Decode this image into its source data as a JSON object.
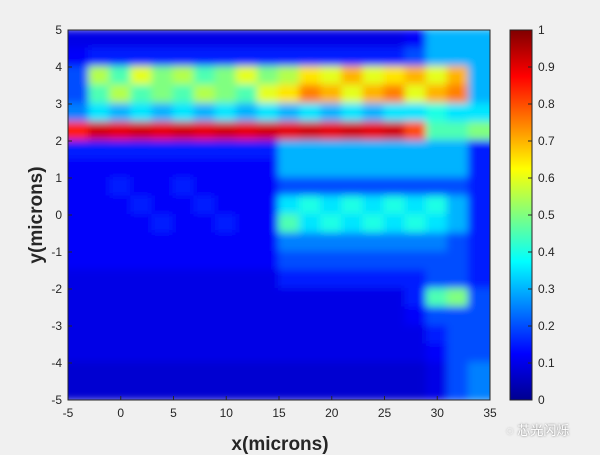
{
  "chart_data": {
    "type": "heatmap",
    "xlabel": "x(microns)",
    "ylabel": "y(microns)",
    "xlim": [
      -5,
      35
    ],
    "ylim": [
      -5,
      5
    ],
    "xticks": [
      "-5",
      "0",
      "5",
      "10",
      "15",
      "20",
      "25",
      "30",
      "35"
    ],
    "yticks": [
      "5",
      "4",
      "3",
      "2",
      "1",
      "0",
      "-1",
      "-2",
      "-3",
      "-4",
      "-5"
    ],
    "colorbar": {
      "colormap": "jet",
      "range": [
        0,
        1
      ],
      "ticks": [
        "1",
        "0.9",
        "0.8",
        "0.7",
        "0.6",
        "0.5",
        "0.4",
        "0.3",
        "0.2",
        "0.1",
        "0"
      ]
    },
    "grid_x_centers": [
      -4,
      -2,
      0,
      2,
      4,
      6,
      8,
      10,
      12,
      14,
      16,
      18,
      20,
      22,
      24,
      26,
      28,
      30,
      32,
      34
    ],
    "grid_y_centers": [
      4.75,
      4.25,
      3.75,
      3.25,
      2.75,
      2.25,
      1.75,
      1.25,
      0.75,
      0.25,
      -0.25,
      -0.75,
      -1.25,
      -1.75,
      -2.25,
      -2.75,
      -3.25,
      -3.75,
      -4.25,
      -4.75
    ],
    "values": [
      [
        0.1,
        0.1,
        0.1,
        0.1,
        0.1,
        0.1,
        0.1,
        0.1,
        0.1,
        0.1,
        0.1,
        0.1,
        0.1,
        0.1,
        0.1,
        0.1,
        0.12,
        0.3,
        0.3,
        0.3
      ],
      [
        0.12,
        0.15,
        0.15,
        0.15,
        0.15,
        0.15,
        0.15,
        0.15,
        0.15,
        0.15,
        0.15,
        0.15,
        0.15,
        0.15,
        0.15,
        0.15,
        0.2,
        0.3,
        0.3,
        0.3
      ],
      [
        0.2,
        0.55,
        0.45,
        0.6,
        0.5,
        0.55,
        0.45,
        0.5,
        0.6,
        0.5,
        0.55,
        0.65,
        0.6,
        0.7,
        0.6,
        0.65,
        0.7,
        0.6,
        0.7,
        0.3
      ],
      [
        0.2,
        0.45,
        0.55,
        0.45,
        0.5,
        0.45,
        0.55,
        0.5,
        0.45,
        0.6,
        0.65,
        0.75,
        0.7,
        0.6,
        0.7,
        0.75,
        0.6,
        0.7,
        0.75,
        0.3
      ],
      [
        0.25,
        0.35,
        0.3,
        0.35,
        0.3,
        0.35,
        0.3,
        0.35,
        0.3,
        0.35,
        0.3,
        0.35,
        0.3,
        0.35,
        0.3,
        0.35,
        0.35,
        0.4,
        0.35,
        0.35
      ],
      [
        0.85,
        0.92,
        0.9,
        0.92,
        0.9,
        0.92,
        0.9,
        0.92,
        0.9,
        0.92,
        0.9,
        0.92,
        0.9,
        0.92,
        0.9,
        0.92,
        0.8,
        0.45,
        0.45,
        0.5
      ],
      [
        0.15,
        0.15,
        0.15,
        0.15,
        0.15,
        0.15,
        0.15,
        0.15,
        0.15,
        0.15,
        0.3,
        0.3,
        0.3,
        0.3,
        0.3,
        0.3,
        0.3,
        0.3,
        0.3,
        0.15
      ],
      [
        0.12,
        0.12,
        0.12,
        0.12,
        0.12,
        0.12,
        0.12,
        0.12,
        0.12,
        0.12,
        0.3,
        0.3,
        0.3,
        0.3,
        0.3,
        0.3,
        0.3,
        0.3,
        0.3,
        0.15
      ],
      [
        0.12,
        0.12,
        0.15,
        0.12,
        0.12,
        0.15,
        0.12,
        0.12,
        0.12,
        0.12,
        0.2,
        0.2,
        0.2,
        0.2,
        0.2,
        0.2,
        0.2,
        0.2,
        0.2,
        0.15
      ],
      [
        0.12,
        0.12,
        0.12,
        0.15,
        0.12,
        0.12,
        0.15,
        0.12,
        0.12,
        0.12,
        0.35,
        0.4,
        0.35,
        0.4,
        0.35,
        0.4,
        0.35,
        0.4,
        0.3,
        0.15
      ],
      [
        0.12,
        0.12,
        0.12,
        0.12,
        0.15,
        0.12,
        0.12,
        0.15,
        0.12,
        0.12,
        0.45,
        0.35,
        0.4,
        0.35,
        0.4,
        0.35,
        0.4,
        0.35,
        0.3,
        0.15
      ],
      [
        0.12,
        0.12,
        0.12,
        0.12,
        0.12,
        0.12,
        0.12,
        0.12,
        0.12,
        0.12,
        0.25,
        0.25,
        0.25,
        0.25,
        0.25,
        0.25,
        0.25,
        0.25,
        0.2,
        0.15
      ],
      [
        0.12,
        0.12,
        0.12,
        0.12,
        0.12,
        0.12,
        0.12,
        0.12,
        0.12,
        0.12,
        0.2,
        0.2,
        0.2,
        0.2,
        0.2,
        0.2,
        0.2,
        0.2,
        0.2,
        0.15
      ],
      [
        0.1,
        0.1,
        0.1,
        0.1,
        0.1,
        0.1,
        0.1,
        0.1,
        0.1,
        0.1,
        0.15,
        0.15,
        0.15,
        0.15,
        0.15,
        0.15,
        0.15,
        0.2,
        0.2,
        0.15
      ],
      [
        0.1,
        0.1,
        0.1,
        0.1,
        0.1,
        0.1,
        0.1,
        0.1,
        0.1,
        0.1,
        0.1,
        0.1,
        0.1,
        0.1,
        0.1,
        0.1,
        0.15,
        0.45,
        0.5,
        0.2
      ],
      [
        0.1,
        0.1,
        0.1,
        0.1,
        0.1,
        0.1,
        0.1,
        0.1,
        0.1,
        0.1,
        0.1,
        0.1,
        0.1,
        0.1,
        0.1,
        0.1,
        0.12,
        0.2,
        0.2,
        0.2
      ],
      [
        0.1,
        0.1,
        0.1,
        0.1,
        0.1,
        0.1,
        0.1,
        0.1,
        0.1,
        0.1,
        0.1,
        0.1,
        0.1,
        0.1,
        0.1,
        0.1,
        0.1,
        0.15,
        0.2,
        0.2
      ],
      [
        0.1,
        0.1,
        0.1,
        0.1,
        0.1,
        0.1,
        0.1,
        0.1,
        0.1,
        0.1,
        0.1,
        0.1,
        0.1,
        0.1,
        0.1,
        0.1,
        0.1,
        0.12,
        0.2,
        0.2
      ],
      [
        0.08,
        0.08,
        0.08,
        0.08,
        0.08,
        0.08,
        0.08,
        0.08,
        0.08,
        0.08,
        0.08,
        0.08,
        0.08,
        0.08,
        0.08,
        0.08,
        0.08,
        0.1,
        0.2,
        0.25
      ],
      [
        0.08,
        0.08,
        0.08,
        0.08,
        0.08,
        0.08,
        0.08,
        0.08,
        0.08,
        0.08,
        0.08,
        0.08,
        0.08,
        0.08,
        0.08,
        0.08,
        0.08,
        0.1,
        0.2,
        0.25
      ]
    ]
  },
  "watermark": "芯光闪烁"
}
